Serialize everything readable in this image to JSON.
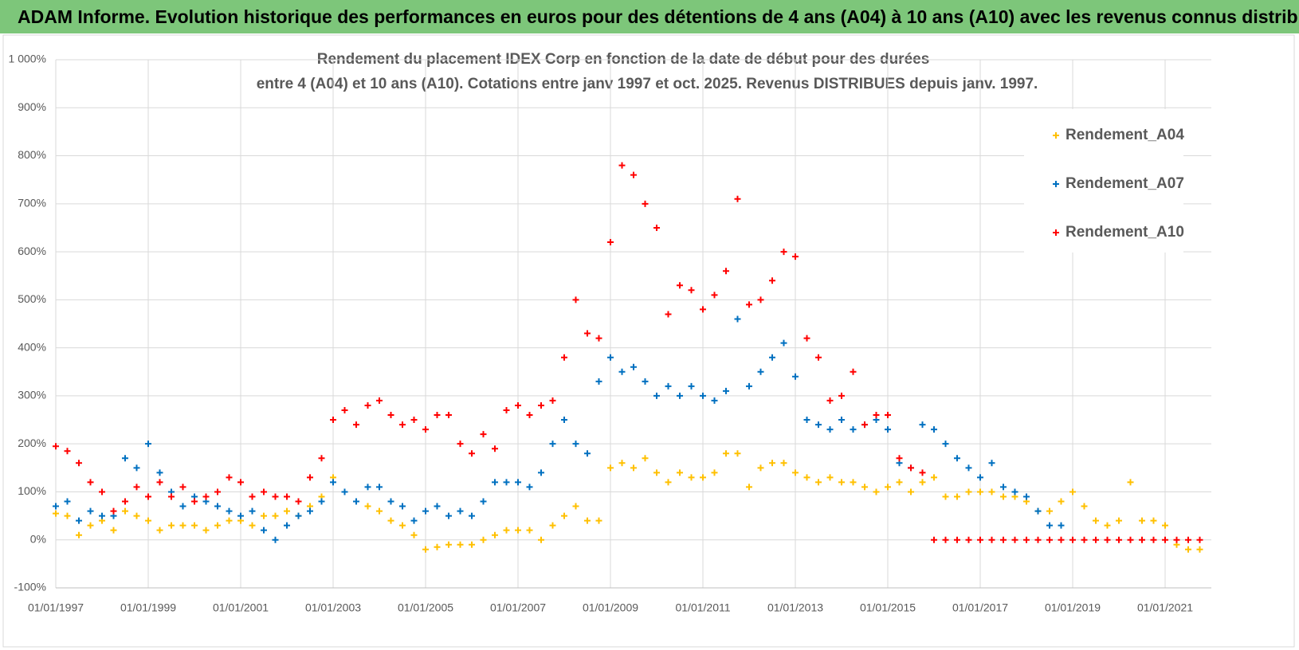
{
  "header": {
    "title": "ADAM Informe. Evolution historique des performances en euros pour des détentions de 4 ans (A04) à 10 ans (A10) avec les revenus connus distribués"
  },
  "chart_data": {
    "type": "scatter",
    "title": "Rendement du placement IDEX Corp en fonction de la date de début pour des durées",
    "subtitle": "entre 4 (A04) et 10 ans (A10). Cotations entre janv 1997 et oct. 2025. Revenus DISTRIBUES depuis janv. 1997.",
    "legend": "right",
    "grid": true,
    "xlim": [
      "01/01/1997",
      "01/01/2022"
    ],
    "xticks": [
      "01/01/1997",
      "01/01/1999",
      "01/01/2001",
      "01/01/2003",
      "01/01/2005",
      "01/01/2007",
      "01/01/2009",
      "01/01/2011",
      "01/01/2013",
      "01/01/2015",
      "01/01/2017",
      "01/01/2019",
      "01/01/2021"
    ],
    "ylim": [
      -100,
      1000
    ],
    "yticks": [
      {
        "value": -100,
        "label": "-100%"
      },
      {
        "value": 0,
        "label": "0%"
      },
      {
        "value": 100,
        "label": "100%"
      },
      {
        "value": 200,
        "label": "200%"
      },
      {
        "value": 300,
        "label": "300%"
      },
      {
        "value": 400,
        "label": "400%"
      },
      {
        "value": 500,
        "label": "500%"
      },
      {
        "value": 600,
        "label": "600%"
      },
      {
        "value": 700,
        "label": "700%"
      },
      {
        "value": 800,
        "label": "800%"
      },
      {
        "value": 900,
        "label": "900%"
      },
      {
        "value": 1000,
        "label": "1 000%"
      }
    ],
    "x": [
      "01/01/1997",
      "01/04/1997",
      "01/07/1997",
      "01/10/1997",
      "01/01/1998",
      "01/04/1998",
      "01/07/1998",
      "01/10/1998",
      "01/01/1999",
      "01/04/1999",
      "01/07/1999",
      "01/10/1999",
      "01/01/2000",
      "01/04/2000",
      "01/07/2000",
      "01/10/2000",
      "01/01/2001",
      "01/04/2001",
      "01/07/2001",
      "01/10/2001",
      "01/01/2002",
      "01/04/2002",
      "01/07/2002",
      "01/10/2002",
      "01/01/2003",
      "01/04/2003",
      "01/07/2003",
      "01/10/2003",
      "01/01/2004",
      "01/04/2004",
      "01/07/2004",
      "01/10/2004",
      "01/01/2005",
      "01/04/2005",
      "01/07/2005",
      "01/10/2005",
      "01/01/2006",
      "01/04/2006",
      "01/07/2006",
      "01/10/2006",
      "01/01/2007",
      "01/04/2007",
      "01/07/2007",
      "01/10/2007",
      "01/01/2008",
      "01/04/2008",
      "01/07/2008",
      "01/10/2008",
      "01/01/2009",
      "01/04/2009",
      "01/07/2009",
      "01/10/2009",
      "01/01/2010",
      "01/04/2010",
      "01/07/2010",
      "01/10/2010",
      "01/01/2011",
      "01/04/2011",
      "01/07/2011",
      "01/10/2011",
      "01/01/2012",
      "01/04/2012",
      "01/07/2012",
      "01/10/2012",
      "01/01/2013",
      "01/04/2013",
      "01/07/2013",
      "01/10/2013",
      "01/01/2014",
      "01/04/2014",
      "01/07/2014",
      "01/10/2014",
      "01/01/2015",
      "01/04/2015",
      "01/07/2015",
      "01/10/2015",
      "01/01/2016",
      "01/04/2016",
      "01/07/2016",
      "01/10/2016",
      "01/01/2017",
      "01/04/2017",
      "01/07/2017",
      "01/10/2017",
      "01/01/2018",
      "01/04/2018",
      "01/07/2018",
      "01/10/2018",
      "01/01/2019",
      "01/04/2019",
      "01/07/2019",
      "01/10/2019",
      "01/01/2020",
      "01/04/2020",
      "01/07/2020",
      "01/10/2020",
      "01/01/2021",
      "01/04/2021",
      "01/07/2021",
      "01/10/2021"
    ],
    "series": [
      {
        "name": "Rendement_A04",
        "color": "#ffc000",
        "values": [
          55,
          50,
          10,
          30,
          40,
          20,
          60,
          50,
          40,
          20,
          30,
          30,
          30,
          20,
          30,
          40,
          40,
          30,
          50,
          50,
          60,
          50,
          70,
          90,
          130,
          100,
          80,
          70,
          60,
          40,
          30,
          10,
          -20,
          -15,
          -10,
          -10,
          -10,
          0,
          10,
          20,
          20,
          20,
          0,
          30,
          50,
          70,
          40,
          40,
          150,
          160,
          150,
          170,
          140,
          120,
          140,
          130,
          130,
          140,
          180,
          180,
          110,
          150,
          160,
          160,
          140,
          130,
          120,
          130,
          120,
          120,
          110,
          100,
          110,
          120,
          100,
          120,
          130,
          90,
          90,
          100,
          100,
          100,
          90,
          90,
          80,
          60,
          60,
          80,
          100,
          70,
          40,
          30,
          40,
          120,
          40,
          40,
          30,
          -10,
          -20,
          -20
        ]
      },
      {
        "name": "Rendement_A07",
        "color": "#0070c0",
        "values": [
          70,
          80,
          40,
          60,
          50,
          50,
          170,
          150,
          200,
          140,
          100,
          70,
          90,
          80,
          70,
          60,
          50,
          60,
          20,
          0,
          30,
          50,
          60,
          80,
          120,
          100,
          80,
          110,
          110,
          80,
          70,
          40,
          60,
          70,
          50,
          60,
          50,
          80,
          120,
          120,
          120,
          110,
          140,
          200,
          250,
          200,
          180,
          330,
          380,
          350,
          360,
          330,
          300,
          320,
          300,
          320,
          300,
          290,
          310,
          460,
          320,
          350,
          380,
          410,
          340,
          250,
          240,
          230,
          250,
          230,
          240,
          250,
          230,
          160,
          150,
          240,
          230,
          200,
          170,
          150,
          130,
          160,
          110,
          100,
          90,
          60,
          30,
          30,
          null,
          null,
          null,
          null,
          null,
          null,
          null,
          null,
          null,
          null,
          null,
          null
        ]
      },
      {
        "name": "Rendement_A10",
        "color": "#ff0000",
        "values": [
          195,
          185,
          160,
          120,
          100,
          60,
          80,
          110,
          90,
          120,
          90,
          110,
          80,
          90,
          100,
          130,
          120,
          90,
          100,
          90,
          90,
          80,
          130,
          170,
          250,
          270,
          240,
          280,
          290,
          260,
          240,
          250,
          230,
          260,
          260,
          200,
          180,
          220,
          190,
          270,
          280,
          260,
          280,
          290,
          380,
          500,
          430,
          420,
          620,
          780,
          760,
          700,
          650,
          470,
          530,
          520,
          480,
          510,
          560,
          710,
          490,
          500,
          540,
          600,
          590,
          420,
          380,
          290,
          300,
          350,
          240,
          260,
          260,
          170,
          150,
          140,
          0,
          0,
          0,
          0,
          0,
          0,
          0,
          0,
          0,
          0,
          0,
          0,
          0,
          0,
          0,
          0,
          0,
          0,
          0,
          0,
          0,
          0,
          0,
          0
        ]
      }
    ]
  }
}
